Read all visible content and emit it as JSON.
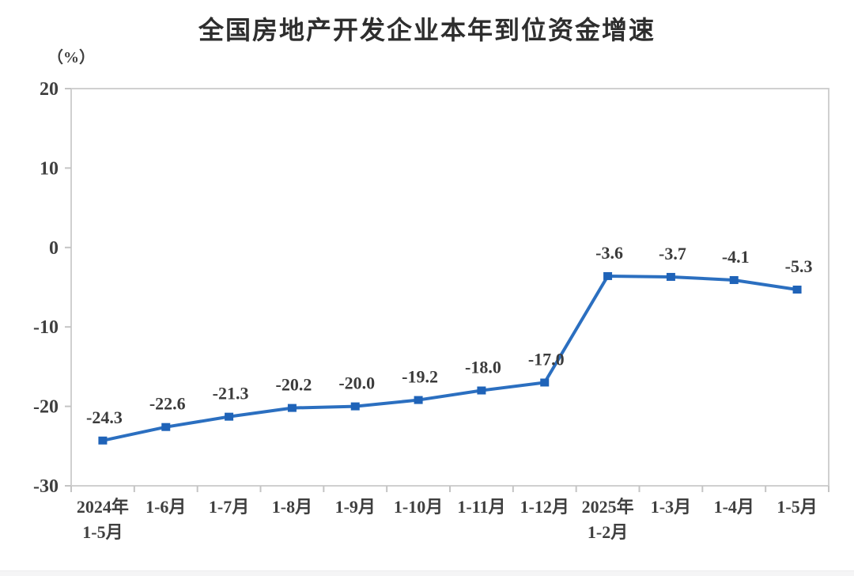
{
  "chart_data": {
    "type": "line",
    "title": "全国房地产开发企业本年到位资金增速",
    "unit_label": "（%）",
    "categories": [
      "2024年\n1-5月",
      "1-6月",
      "1-7月",
      "1-8月",
      "1-9月",
      "1-10月",
      "1-11月",
      "1-12月",
      "2025年\n1-2月",
      "1-3月",
      "1-4月",
      "1-5月"
    ],
    "values": [
      -24.3,
      -22.6,
      -21.3,
      -20.2,
      -20.0,
      -19.2,
      -18.0,
      -17.0,
      -3.6,
      -3.7,
      -4.1,
      -5.3
    ],
    "data_labels": [
      "-24.3",
      "-22.6",
      "-21.3",
      "-20.2",
      "-20.0",
      "-19.2",
      "-18.0",
      "-17.0",
      "-3.6",
      "-3.7",
      "-4.1",
      "-5.3"
    ],
    "ylim": [
      -30,
      20
    ],
    "yticks": [
      20,
      10,
      0,
      -10,
      -20,
      -30
    ],
    "grid": false,
    "legend": false,
    "marker_shape": "square",
    "colors": {
      "line": "#2b6fc0",
      "marker": "#1f63b8",
      "plot_border": "#d0d0d0",
      "tick_mark": "#c4c4c4",
      "tick_text": "#3f3f3f",
      "data_label_text": "#3b3b3b",
      "title_text": "#2e2e2e"
    }
  }
}
